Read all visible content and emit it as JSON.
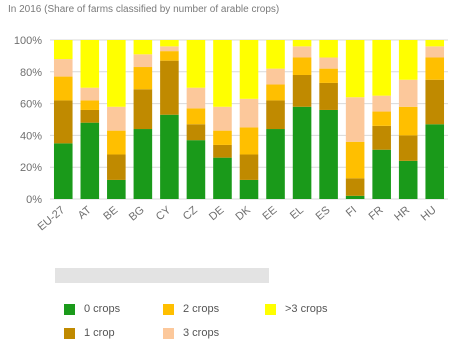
{
  "header": {
    "title": "In 2016 (Share of farms classified by number of arable crops)"
  },
  "legend": {
    "items": [
      {
        "label": "0 crops",
        "color": "#1a9a1a"
      },
      {
        "label": "1 crop",
        "color": "#c08a00"
      },
      {
        "label": "2 crops",
        "color": "#ffbf00"
      },
      {
        "label": "3 crops",
        "color": "#fcc89b"
      },
      {
        "label": ">3 crops",
        "color": "#ffff00"
      }
    ]
  },
  "chart_data": {
    "type": "bar",
    "stacked": true,
    "title": "In 2016 (Share of farms classified by number of arable crops)",
    "xlabel": "",
    "ylabel": "",
    "ylim": [
      0,
      100
    ],
    "y_ticks": [
      "0%",
      "20%",
      "40%",
      "60%",
      "80%",
      "100%"
    ],
    "grid": true,
    "legend_position": "bottom",
    "categories": [
      "EU-27",
      "AT",
      "BE",
      "BG",
      "CY",
      "CZ",
      "DE",
      "DK",
      "EE",
      "EL",
      "ES",
      "FI",
      "FR",
      "HR",
      "HU"
    ],
    "series": [
      {
        "name": "0 crops",
        "color": "#1a9a1a",
        "values": [
          35,
          48,
          12,
          44,
          53,
          37,
          26,
          12,
          44,
          58,
          56,
          2,
          31,
          24,
          47
        ]
      },
      {
        "name": "1 crop",
        "color": "#c08a00",
        "values": [
          27,
          8,
          16,
          25,
          34,
          10,
          8,
          16,
          18,
          20,
          17,
          11,
          15,
          16,
          28
        ]
      },
      {
        "name": "2 crops",
        "color": "#ffbf00",
        "values": [
          15,
          6,
          15,
          14,
          6,
          10,
          9,
          17,
          10,
          11,
          9,
          23,
          9,
          18,
          14
        ]
      },
      {
        "name": "3 crops",
        "color": "#fcc89b",
        "values": [
          11,
          8,
          15,
          8,
          3,
          13,
          15,
          18,
          10,
          7,
          7,
          28,
          10,
          17,
          7
        ]
      },
      {
        "name": ">3 crops",
        "color": "#ffff00",
        "values": [
          12,
          30,
          42,
          9,
          4,
          30,
          42,
          37,
          18,
          4,
          11,
          36,
          35,
          25,
          4
        ]
      }
    ]
  }
}
